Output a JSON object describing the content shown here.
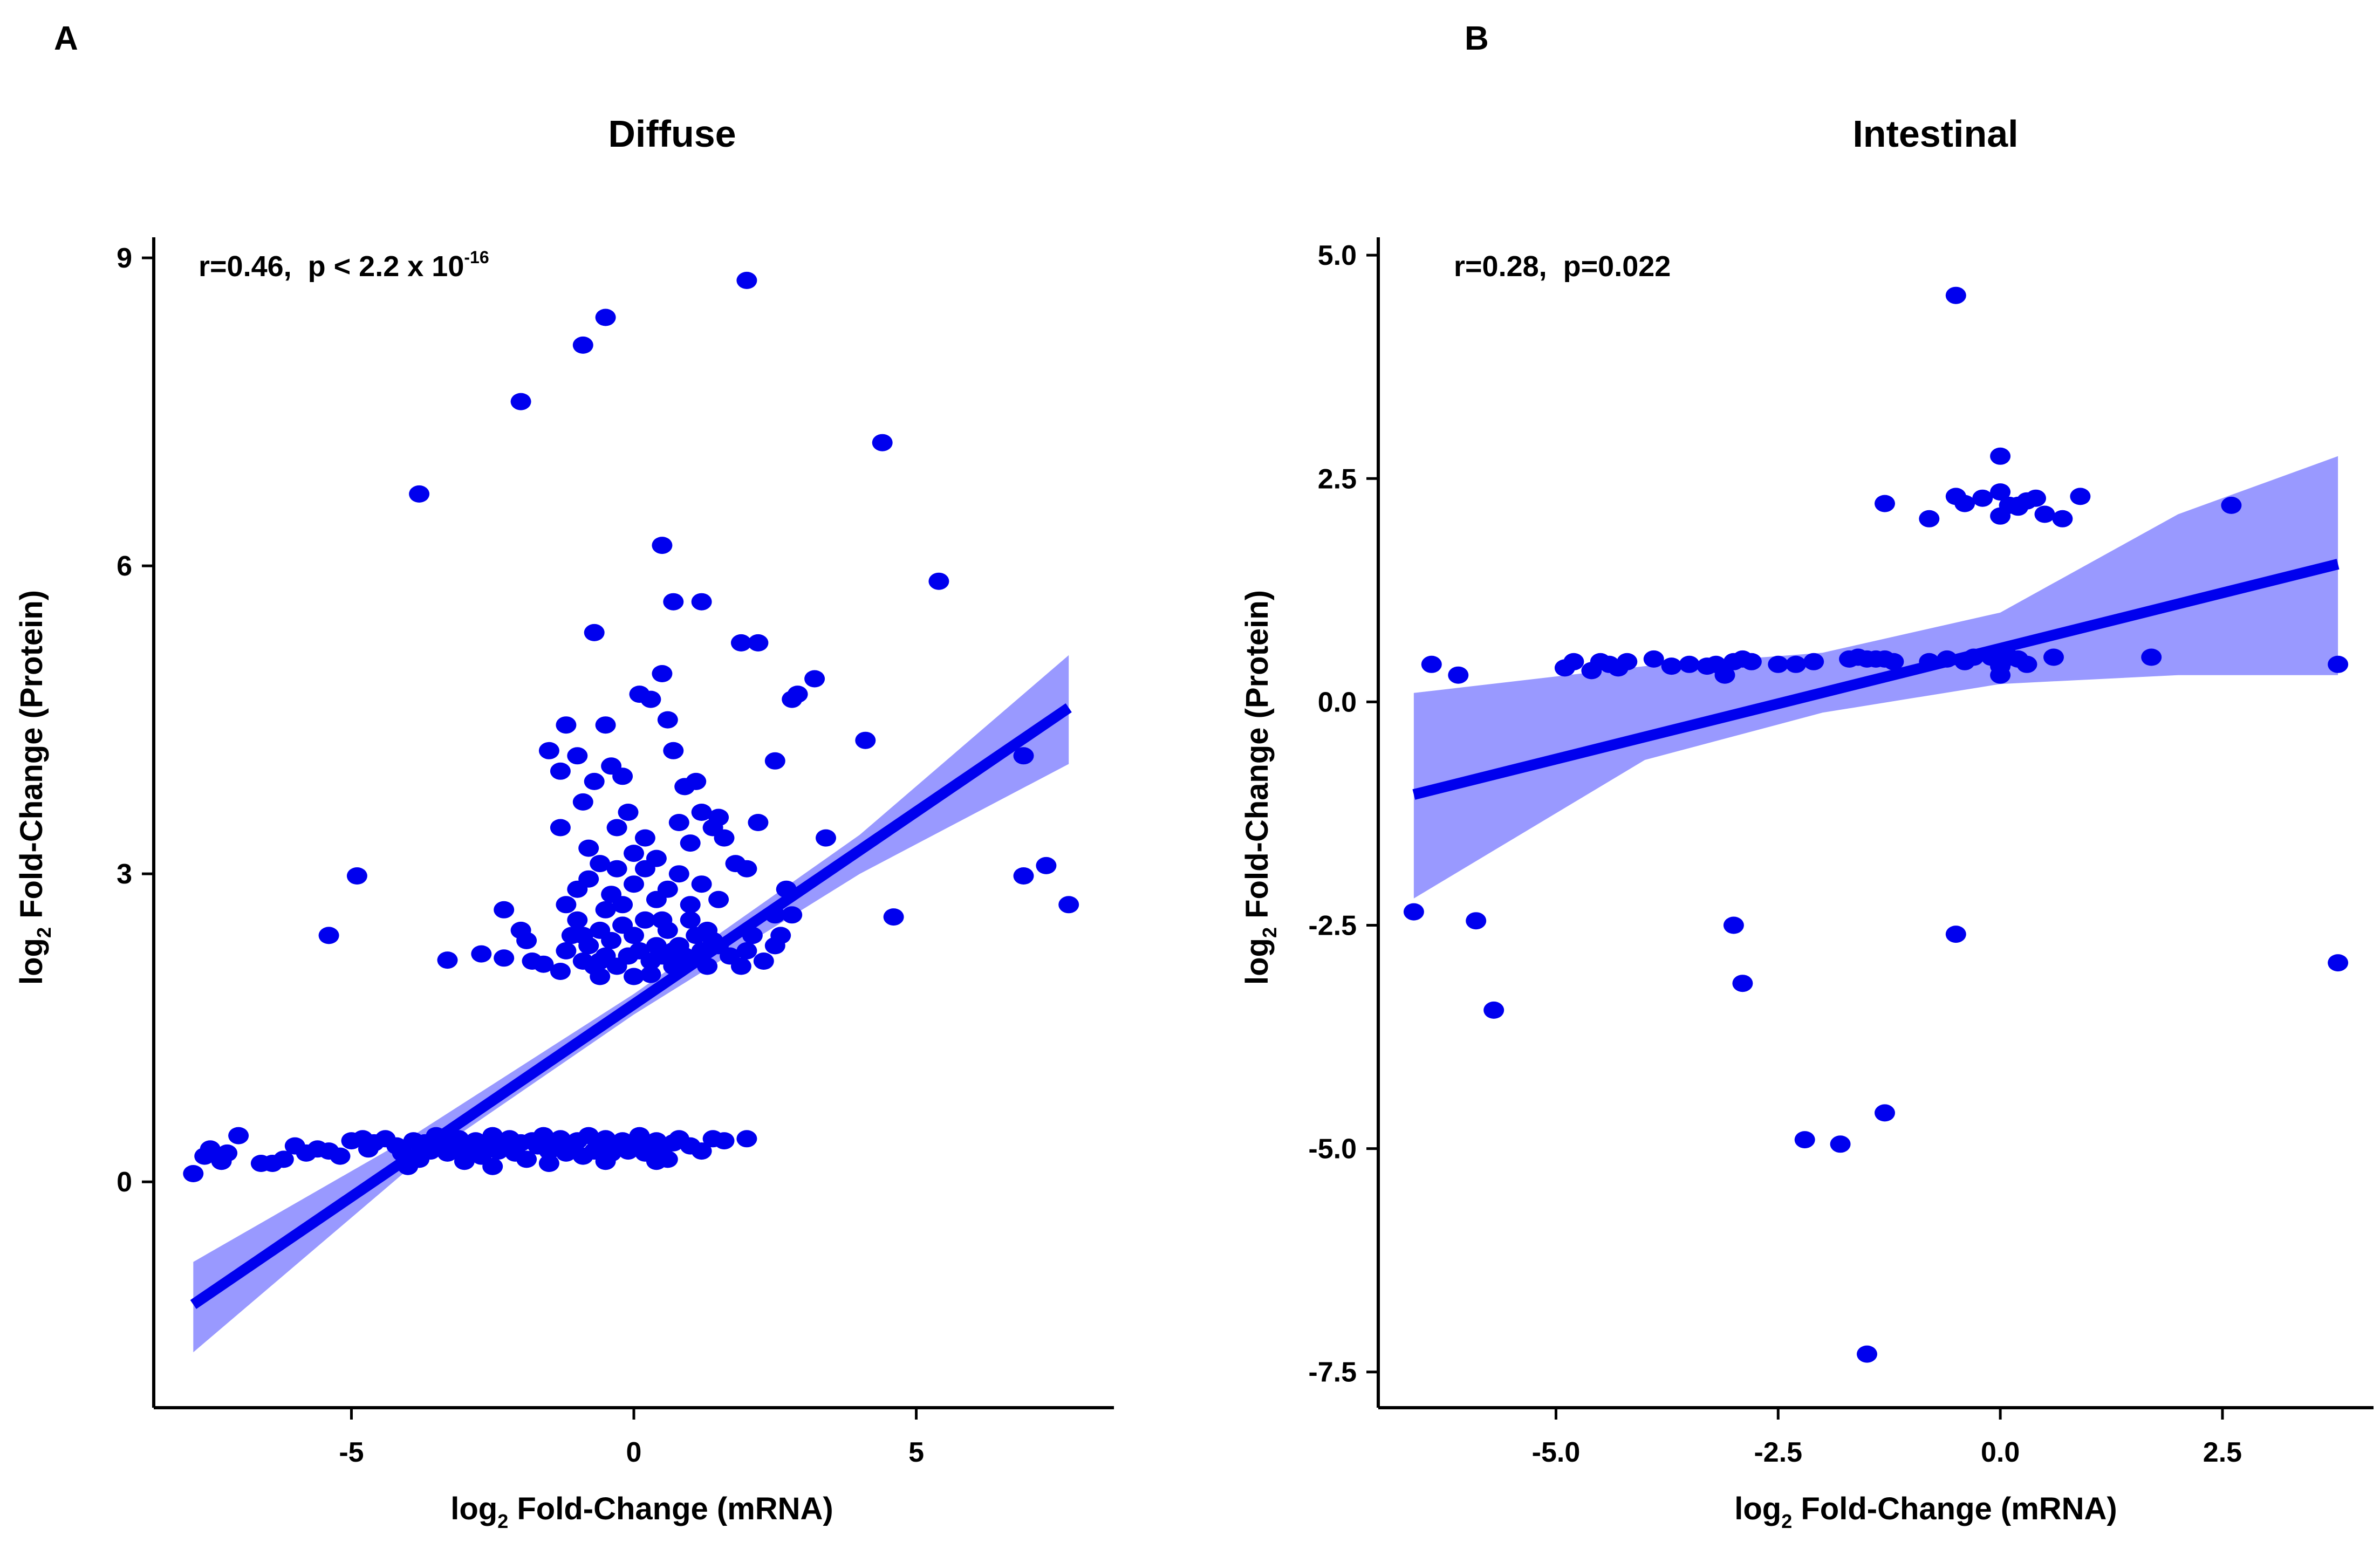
{
  "chart_data": [
    {
      "panel_letter": "A",
      "type": "scatter",
      "title": "Diffuse",
      "xlabel": {
        "pre": "log",
        "sub": "2",
        "post": " Fold-Change (mRNA)"
      },
      "ylabel": {
        "pre": "log",
        "sub": "2",
        "post": " Fold-Change (Protein)"
      },
      "annotation": {
        "r_text": "r=0.46,",
        "p_text": "p < 2.2 x 10",
        "p_exp": "-16"
      },
      "xlim": [
        -8.5,
        8.5
      ],
      "ylim": [
        -2.2,
        9.2
      ],
      "x_ticks": [
        -5,
        0,
        5
      ],
      "x_tick_labels": [
        "-5",
        "0",
        "5"
      ],
      "y_ticks": [
        0,
        3,
        6,
        9
      ],
      "y_tick_labels": [
        "0",
        "3",
        "6",
        "9"
      ],
      "grid": false,
      "marker_color": "#0000ee",
      "band_color": "#9999ff",
      "fit": {
        "x0": -7.8,
        "x1": 7.7,
        "slope": 0.375,
        "intercept": 1.73
      },
      "band": [
        {
          "x": -7.8,
          "lo": -1.66,
          "hi": -0.78
        },
        {
          "x": -4.0,
          "lo": 0.12,
          "hi": 0.42
        },
        {
          "x": 0.0,
          "lo": 1.63,
          "hi": 1.83
        },
        {
          "x": 4.0,
          "lo": 3.0,
          "hi": 3.38
        },
        {
          "x": 7.7,
          "lo": 4.07,
          "hi": 5.13
        }
      ],
      "points": [
        [
          -7.8,
          0.08
        ],
        [
          -7.6,
          0.25
        ],
        [
          -7.5,
          0.32
        ],
        [
          -7.3,
          0.2
        ],
        [
          -7.2,
          0.28
        ],
        [
          -7.0,
          0.45
        ],
        [
          -6.6,
          0.18
        ],
        [
          -6.4,
          0.18
        ],
        [
          -6.2,
          0.22
        ],
        [
          -6.0,
          0.35
        ],
        [
          -5.8,
          0.28
        ],
        [
          -5.6,
          0.32
        ],
        [
          -5.4,
          0.3
        ],
        [
          -5.2,
          0.25
        ],
        [
          -5.0,
          0.4
        ],
        [
          -4.8,
          0.42
        ],
        [
          -4.7,
          0.32
        ],
        [
          -4.6,
          0.38
        ],
        [
          -4.4,
          0.42
        ],
        [
          -4.2,
          0.35
        ],
        [
          -4.1,
          0.28
        ],
        [
          -4.0,
          0.15
        ],
        [
          -3.9,
          0.4
        ],
        [
          -3.8,
          0.22
        ],
        [
          -3.7,
          0.38
        ],
        [
          -3.6,
          0.3
        ],
        [
          -3.5,
          0.45
        ],
        [
          -3.4,
          0.35
        ],
        [
          -3.3,
          0.28
        ],
        [
          -3.2,
          0.38
        ],
        [
          -3.1,
          0.42
        ],
        [
          -3.0,
          0.3
        ],
        [
          -2.9,
          0.35
        ],
        [
          -2.8,
          0.4
        ],
        [
          -2.7,
          0.25
        ],
        [
          -2.6,
          0.38
        ],
        [
          -2.5,
          0.45
        ],
        [
          -2.4,
          0.3
        ],
        [
          -2.3,
          0.35
        ],
        [
          -2.2,
          0.42
        ],
        [
          -2.1,
          0.28
        ],
        [
          -2.0,
          0.38
        ],
        [
          -1.9,
          0.22
        ],
        [
          -1.8,
          0.4
        ],
        [
          -1.7,
          0.35
        ],
        [
          -1.6,
          0.45
        ],
        [
          -1.5,
          0.3
        ],
        [
          -1.4,
          0.38
        ],
        [
          -1.3,
          0.42
        ],
        [
          -1.2,
          0.28
        ],
        [
          -1.1,
          0.35
        ],
        [
          -1.0,
          0.4
        ],
        [
          -0.9,
          0.25
        ],
        [
          -0.8,
          0.45
        ],
        [
          -0.7,
          0.3
        ],
        [
          -0.6,
          0.38
        ],
        [
          -0.5,
          0.42
        ],
        [
          -0.4,
          0.28
        ],
        [
          -0.3,
          0.35
        ],
        [
          -0.2,
          0.4
        ],
        [
          -0.1,
          0.3
        ],
        [
          0.0,
          0.38
        ],
        [
          0.1,
          0.45
        ],
        [
          0.2,
          0.28
        ],
        [
          0.3,
          0.35
        ],
        [
          0.4,
          0.4
        ],
        [
          0.5,
          0.3
        ],
        [
          0.6,
          0.22
        ],
        [
          0.7,
          0.38
        ],
        [
          0.8,
          0.42
        ],
        [
          1.0,
          0.35
        ],
        [
          1.2,
          0.3
        ],
        [
          1.4,
          0.42
        ],
        [
          1.6,
          0.4
        ],
        [
          2.0,
          0.42
        ],
        [
          -2.5,
          0.15
        ],
        [
          -1.5,
          0.18
        ],
        [
          -0.5,
          0.2
        ],
        [
          0.4,
          0.2
        ],
        [
          -3.0,
          0.2
        ],
        [
          -5.4,
          2.4
        ],
        [
          -4.9,
          2.98
        ],
        [
          -3.3,
          2.16
        ],
        [
          -2.7,
          2.22
        ],
        [
          -2.3,
          2.65
        ],
        [
          -2.0,
          2.45
        ],
        [
          -1.8,
          2.15
        ],
        [
          -1.6,
          2.12
        ],
        [
          -1.3,
          2.05
        ],
        [
          -1.2,
          2.25
        ],
        [
          -1.1,
          2.4
        ],
        [
          -1.0,
          2.55
        ],
        [
          -0.9,
          2.15
        ],
        [
          -0.8,
          2.3
        ],
        [
          -0.7,
          2.1
        ],
        [
          -0.6,
          2.45
        ],
        [
          -0.5,
          2.2
        ],
        [
          -0.4,
          2.35
        ],
        [
          -0.3,
          2.1
        ],
        [
          -0.2,
          2.5
        ],
        [
          -0.1,
          2.2
        ],
        [
          0.0,
          2.4
        ],
        [
          0.1,
          2.25
        ],
        [
          0.2,
          2.55
        ],
        [
          0.3,
          2.15
        ],
        [
          0.4,
          2.3
        ],
        [
          0.5,
          2.2
        ],
        [
          0.6,
          2.45
        ],
        [
          0.7,
          2.1
        ],
        [
          0.8,
          2.3
        ],
        [
          0.9,
          2.2
        ],
        [
          1.0,
          2.15
        ],
        [
          1.1,
          2.4
        ],
        [
          1.2,
          2.25
        ],
        [
          1.3,
          2.1
        ],
        [
          1.5,
          2.3
        ],
        [
          1.7,
          2.2
        ],
        [
          1.9,
          2.1
        ],
        [
          2.1,
          2.4
        ],
        [
          2.3,
          2.15
        ],
        [
          2.5,
          2.3
        ],
        [
          2.6,
          2.4
        ],
        [
          2.8,
          2.6
        ],
        [
          -1.2,
          2.7
        ],
        [
          -1.0,
          2.85
        ],
        [
          -0.8,
          2.95
        ],
        [
          -0.6,
          3.1
        ],
        [
          -0.4,
          2.8
        ],
        [
          -0.2,
          2.7
        ],
        [
          0.0,
          2.9
        ],
        [
          0.2,
          3.05
        ],
        [
          0.4,
          2.75
        ],
        [
          0.6,
          2.85
        ],
        [
          0.8,
          3.0
        ],
        [
          1.0,
          2.7
        ],
        [
          1.2,
          2.9
        ],
        [
          1.5,
          2.75
        ],
        [
          2.0,
          3.05
        ],
        [
          2.5,
          2.6
        ],
        [
          2.7,
          2.85
        ],
        [
          -1.5,
          4.2
        ],
        [
          -1.2,
          4.45
        ],
        [
          -1.3,
          4.0
        ],
        [
          -1.0,
          4.15
        ],
        [
          -0.9,
          3.7
        ],
        [
          -0.7,
          3.9
        ],
        [
          -0.5,
          4.45
        ],
        [
          -0.4,
          4.05
        ],
        [
          -0.2,
          3.95
        ],
        [
          -0.1,
          3.6
        ],
        [
          0.1,
          4.75
        ],
        [
          0.3,
          4.7
        ],
        [
          0.5,
          4.95
        ],
        [
          0.6,
          4.5
        ],
        [
          0.7,
          4.2
        ],
        [
          0.9,
          3.85
        ],
        [
          1.1,
          3.9
        ],
        [
          1.2,
          3.6
        ],
        [
          1.4,
          3.45
        ],
        [
          1.5,
          3.55
        ],
        [
          1.6,
          3.35
        ],
        [
          1.8,
          3.1
        ],
        [
          -1.3,
          3.45
        ],
        [
          -0.8,
          3.25
        ],
        [
          -0.3,
          3.45
        ],
        [
          0.2,
          3.35
        ],
        [
          0.8,
          3.5
        ],
        [
          1.0,
          3.3
        ],
        [
          2.2,
          3.5
        ],
        [
          2.5,
          4.1
        ],
        [
          2.8,
          4.7
        ],
        [
          2.9,
          4.75
        ],
        [
          3.2,
          4.9
        ],
        [
          3.4,
          3.35
        ],
        [
          4.1,
          4.3
        ],
        [
          4.6,
          2.58
        ],
        [
          5.4,
          5.85
        ],
        [
          4.4,
          7.2
        ],
        [
          0.5,
          6.2
        ],
        [
          0.7,
          5.65
        ],
        [
          1.2,
          5.65
        ],
        [
          1.9,
          5.25
        ],
        [
          2.2,
          5.25
        ],
        [
          -0.7,
          5.35
        ],
        [
          -3.8,
          6.7
        ],
        [
          -2.0,
          7.6
        ],
        [
          -0.9,
          8.15
        ],
        [
          -0.5,
          8.42
        ],
        [
          2.0,
          8.78
        ],
        [
          6.9,
          2.98
        ],
        [
          7.3,
          3.08
        ],
        [
          7.7,
          2.7
        ],
        [
          6.9,
          4.15
        ],
        [
          -0.6,
          2.0
        ],
        [
          0.0,
          2.0
        ],
        [
          0.3,
          2.02
        ],
        [
          -1.9,
          2.35
        ],
        [
          -2.3,
          2.18
        ],
        [
          1.4,
          2.35
        ],
        [
          2.0,
          2.25
        ],
        [
          -0.5,
          2.65
        ],
        [
          0.5,
          2.55
        ],
        [
          1.0,
          2.55
        ],
        [
          -0.6,
          2.15
        ],
        [
          0.7,
          2.25
        ],
        [
          -0.9,
          2.4
        ],
        [
          1.3,
          2.45
        ],
        [
          0.0,
          3.2
        ],
        [
          0.4,
          3.15
        ],
        [
          -0.3,
          3.05
        ]
      ]
    },
    {
      "panel_letter": "B",
      "type": "scatter",
      "title": "Intestinal",
      "xlabel": {
        "pre": "log",
        "sub": "2",
        "post": " Fold-Change (mRNA)"
      },
      "ylabel": {
        "pre": "log",
        "sub": "2",
        "post": " Fold-Change (Protein)"
      },
      "annotation": {
        "r_text": "r=0.28,",
        "p_text": "p=0.022",
        "p_exp": ""
      },
      "xlim": [
        -7.0,
        4.2
      ],
      "ylim": [
        -7.9,
        5.2
      ],
      "x_ticks": [
        -5.0,
        -2.5,
        0.0,
        2.5
      ],
      "x_tick_labels": [
        "-5.0",
        "-2.5",
        "0.0",
        "2.5"
      ],
      "y_ticks": [
        5.0,
        2.5,
        0.0,
        -2.5,
        -5.0,
        -7.5
      ],
      "y_tick_labels": [
        "5.0",
        "2.5",
        "0.0",
        "-2.5",
        "-5.0",
        "-7.5"
      ],
      "grid": false,
      "marker_color": "#0000ee",
      "band_color": "#9999ff",
      "fit": {
        "x0": -6.6,
        "x1": 3.8,
        "slope": 0.248,
        "intercept": 0.6
      },
      "band": [
        {
          "x": -6.6,
          "lo": -2.2,
          "hi": 0.1
        },
        {
          "x": -4.0,
          "lo": -0.65,
          "hi": 0.4
        },
        {
          "x": -2.0,
          "lo": -0.12,
          "hi": 0.55
        },
        {
          "x": 0.0,
          "lo": 0.2,
          "hi": 1.0
        },
        {
          "x": 2.0,
          "lo": 0.3,
          "hi": 2.1
        },
        {
          "x": 3.8,
          "lo": 0.3,
          "hi": 2.75
        }
      ],
      "points": [
        [
          -6.4,
          0.42
        ],
        [
          -6.1,
          0.3
        ],
        [
          -4.9,
          0.38
        ],
        [
          -4.8,
          0.45
        ],
        [
          -4.6,
          0.35
        ],
        [
          -4.5,
          0.45
        ],
        [
          -4.4,
          0.42
        ],
        [
          -4.2,
          0.45
        ],
        [
          -3.9,
          0.48
        ],
        [
          -3.7,
          0.4
        ],
        [
          -3.5,
          0.42
        ],
        [
          -3.3,
          0.4
        ],
        [
          -3.1,
          0.3
        ],
        [
          -3.0,
          0.45
        ],
        [
          -2.9,
          0.48
        ],
        [
          -2.8,
          0.45
        ],
        [
          -2.5,
          0.42
        ],
        [
          -2.1,
          0.45
        ],
        [
          -1.7,
          0.48
        ],
        [
          -1.6,
          0.5
        ],
        [
          -1.5,
          0.48
        ],
        [
          -1.3,
          0.48
        ],
        [
          -1.2,
          0.45
        ],
        [
          -0.8,
          0.45
        ],
        [
          -0.6,
          0.48
        ],
        [
          -0.3,
          0.5
        ],
        [
          -0.1,
          0.5
        ],
        [
          0.0,
          0.4
        ],
        [
          0.1,
          0.5
        ],
        [
          0.6,
          0.5
        ],
        [
          0.0,
          0.3
        ],
        [
          -4.3,
          0.38
        ],
        [
          -3.2,
          0.42
        ],
        [
          -1.4,
          0.48
        ],
        [
          -0.4,
          0.45
        ],
        [
          0.2,
          0.48
        ],
        [
          0.3,
          0.42
        ],
        [
          -2.3,
          0.42
        ],
        [
          1.7,
          0.5
        ],
        [
          3.8,
          0.42
        ],
        [
          -0.5,
          4.55
        ],
        [
          0.0,
          2.75
        ],
        [
          -1.3,
          2.22
        ],
        [
          -0.8,
          2.05
        ],
        [
          -0.5,
          2.3
        ],
        [
          -0.4,
          2.22
        ],
        [
          -0.2,
          2.28
        ],
        [
          0.0,
          2.35
        ],
        [
          0.1,
          2.2
        ],
        [
          0.2,
          2.18
        ],
        [
          0.3,
          2.25
        ],
        [
          0.4,
          2.28
        ],
        [
          0.5,
          2.1
        ],
        [
          0.7,
          2.05
        ],
        [
          0.9,
          2.3
        ],
        [
          0.0,
          2.08
        ],
        [
          0.2,
          2.2
        ],
        [
          2.6,
          2.2
        ],
        [
          -6.6,
          -2.35
        ],
        [
          -5.9,
          -2.45
        ],
        [
          -5.7,
          -3.45
        ],
        [
          -3.0,
          -2.5
        ],
        [
          -2.9,
          -3.15
        ],
        [
          -0.5,
          -2.6
        ],
        [
          -2.2,
          -4.9
        ],
        [
          -1.8,
          -4.95
        ],
        [
          -1.3,
          -4.6
        ],
        [
          -1.5,
          -7.3
        ],
        [
          3.8,
          -2.92
        ]
      ]
    }
  ]
}
